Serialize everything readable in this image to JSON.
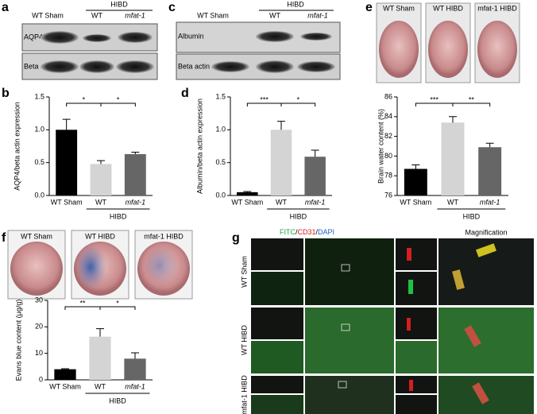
{
  "panel_letters": [
    "a",
    "b",
    "c",
    "d",
    "e",
    "f",
    "g"
  ],
  "blots": [
    {
      "groups": {
        "sham": "WT Sham",
        "hibd": "HIBD",
        "wt": "WT",
        "mfat": "mfat-1"
      },
      "rows": [
        "AQP4",
        "Beta actin"
      ]
    },
    {
      "groups": {
        "sham": "WT Sham",
        "hibd": "HIBD",
        "wt": "WT",
        "mfat": "mfat-1"
      },
      "rows": [
        "Albumin",
        "Beta actin"
      ]
    }
  ],
  "brain_photos": [
    {
      "labels": [
        "WT Sham",
        "WT HIBD",
        "mfat-1 HIBD"
      ]
    },
    {
      "labels": [
        "WT Sham",
        "WT HIBD",
        "mfat-1  HIBD"
      ]
    }
  ],
  "microscopy": {
    "stains": {
      "fitc": "FITC",
      "sep": "/",
      "cd31": "CD31",
      "dapi": "DAPI"
    },
    "magnification": "Magnification",
    "rows": [
      "WT Sham",
      "WT HIBD",
      "mfat-1 HIBD"
    ]
  },
  "chart_data": [
    {
      "type": "bar",
      "ylabel": "AQP4/beta actin expression",
      "categories": [
        "WT Sham",
        "WT",
        "mfat-1"
      ],
      "group_label": "HIBD",
      "values": [
        1.0,
        0.48,
        0.63
      ],
      "errors": [
        0.16,
        0.05,
        0.03
      ],
      "colors": [
        "#000000",
        "#d4d4d4",
        "#666666"
      ],
      "ylim": [
        0,
        1.5
      ],
      "yticks": [
        {
          "value": 0,
          "label": "0.0"
        },
        0.5,
        {
          "value": 1,
          "label": "1.0"
        },
        1.5
      ],
      "significance": [
        "*",
        "*"
      ]
    },
    {
      "type": "bar",
      "ylabel": "Albumin/beta actin expression",
      "categories": [
        "WT Sham",
        "WT",
        "mfat-1"
      ],
      "group_label": "HIBD",
      "values": [
        0.05,
        1.0,
        0.59
      ],
      "errors": [
        0.01,
        0.13,
        0.1
      ],
      "colors": [
        "#000000",
        "#d4d4d4",
        "#666666"
      ],
      "ylim": [
        0,
        1.5
      ],
      "yticks": [
        {
          "value": 0,
          "label": "0.0"
        },
        0.5,
        {
          "value": 1,
          "label": "1.0"
        },
        1.5
      ],
      "significance": [
        "***",
        "*"
      ]
    },
    {
      "type": "bar",
      "ylabel": "Brain water content (%)",
      "categories": [
        "WT Sham",
        "WT",
        "mfat-1"
      ],
      "group_label": "HIBD",
      "values": [
        78.7,
        83.4,
        80.9
      ],
      "errors": [
        0.4,
        0.6,
        0.4
      ],
      "colors": [
        "#000000",
        "#d4d4d4",
        "#666666"
      ],
      "ylim": [
        76,
        86
      ],
      "yticks": [
        76,
        78,
        80,
        82,
        84,
        86
      ],
      "significance": [
        "***",
        "**"
      ]
    },
    {
      "type": "bar",
      "ylabel": "Evans blue content (μg/g)",
      "categories": [
        "WT Sham",
        "WT",
        "mfat-1"
      ],
      "group_label": "HIBD",
      "values": [
        4,
        16.3,
        8
      ],
      "errors": [
        0.2,
        3,
        2.2
      ],
      "colors": [
        "#000000",
        "#d4d4d4",
        "#666666"
      ],
      "ylim": [
        0,
        30
      ],
      "yticks": [
        0,
        10,
        20,
        30
      ],
      "significance": [
        "**",
        "*"
      ]
    }
  ]
}
